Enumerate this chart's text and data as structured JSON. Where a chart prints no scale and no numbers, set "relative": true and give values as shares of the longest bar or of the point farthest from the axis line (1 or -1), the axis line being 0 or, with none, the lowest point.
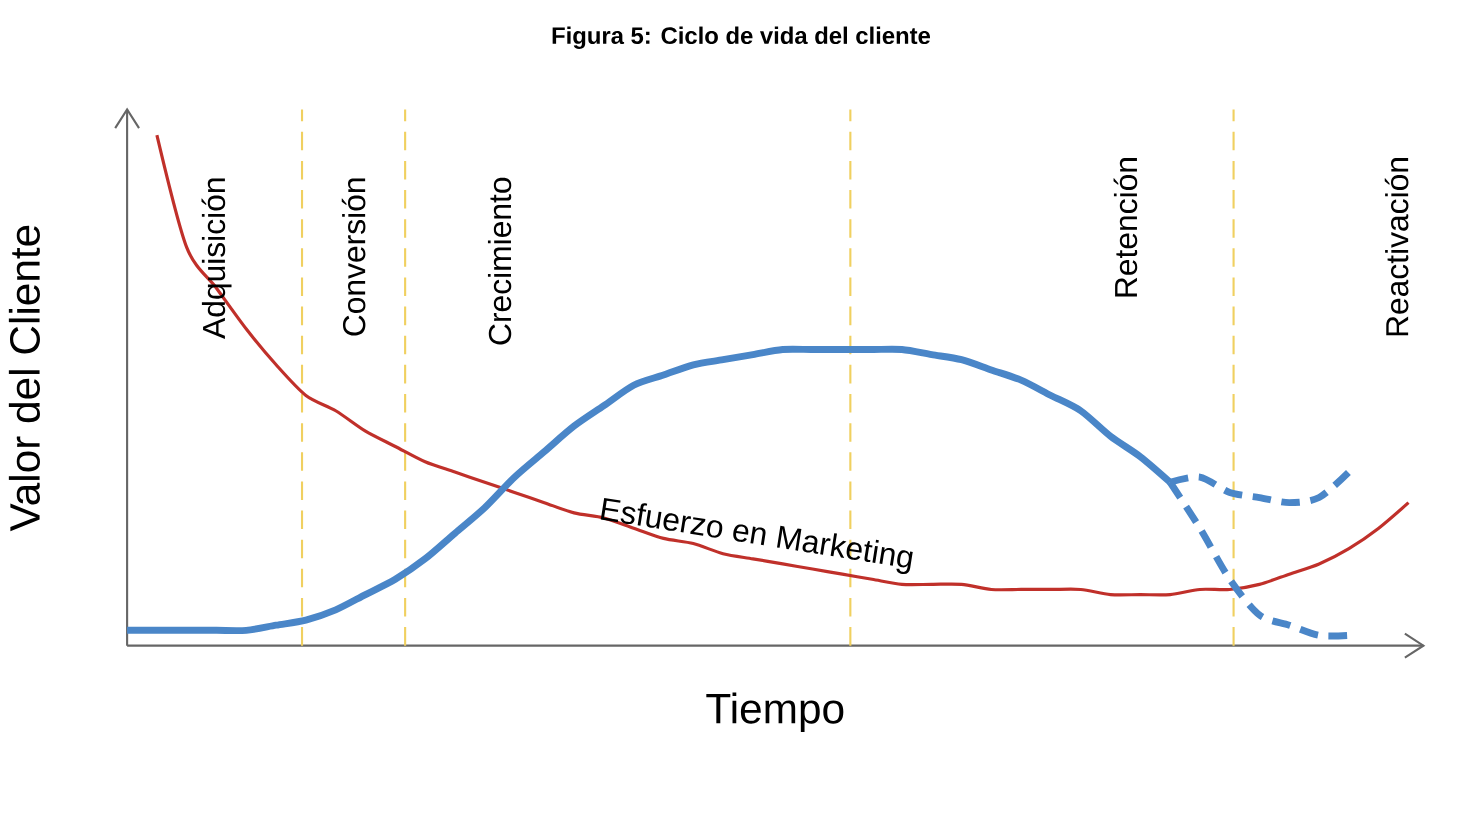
{
  "chart_data": {
    "type": "line",
    "title": "Figura 5: Ciclo de vida del cliente",
    "xlabel": "Tiempo",
    "ylabel": "Valor del Cliente",
    "relative": true,
    "categories": [
      null,
      null,
      null,
      null,
      null,
      null,
      null,
      null,
      null,
      null,
      null,
      null,
      null,
      null,
      null,
      null,
      null,
      null,
      null,
      null,
      null,
      null,
      null,
      null,
      null,
      null,
      null,
      null,
      null,
      null,
      null,
      null,
      null,
      null,
      null,
      null,
      null,
      null,
      null,
      null,
      null,
      null,
      null,
      null
    ],
    "series": [
      {
        "name": "Esfuerzo en Marketing",
        "color": "#c0302a",
        "values": [
          null,
          1.0,
          0.78,
          0.7,
          0.62,
          0.55,
          0.49,
          0.46,
          0.42,
          0.39,
          0.36,
          0.34,
          0.32,
          0.3,
          0.28,
          0.26,
          0.25,
          0.23,
          0.21,
          0.2,
          0.18,
          0.17,
          0.16,
          0.15,
          0.14,
          0.13,
          0.12,
          0.12,
          0.12,
          0.11,
          0.11,
          0.11,
          0.11,
          0.1,
          0.1,
          0.1,
          0.11,
          0.11,
          0.12,
          0.14,
          0.16,
          0.19,
          0.23,
          0.28
        ]
      },
      {
        "color": "#4a86c8",
        "line_style": "solid",
        "values": [
          0.03,
          0.03,
          0.03,
          0.03,
          0.03,
          0.04,
          0.05,
          0.07,
          0.1,
          0.13,
          0.17,
          0.22,
          0.27,
          0.33,
          0.38,
          0.43,
          0.47,
          0.51,
          0.53,
          0.55,
          0.56,
          0.57,
          0.58,
          0.58,
          0.58,
          0.58,
          0.58,
          0.57,
          0.56,
          0.54,
          0.52,
          0.49,
          0.46,
          0.41,
          0.37,
          0.32,
          null,
          null,
          null,
          null,
          null,
          null,
          null,
          null
        ]
      },
      {
        "color": "#4a86c8",
        "line_style": "dashed",
        "values": [
          null,
          null,
          null,
          null,
          null,
          null,
          null,
          null,
          null,
          null,
          null,
          null,
          null,
          null,
          null,
          null,
          null,
          null,
          null,
          null,
          null,
          null,
          null,
          null,
          null,
          null,
          null,
          null,
          null,
          null,
          null,
          null,
          null,
          null,
          null,
          0.32,
          0.23,
          0.13,
          0.06,
          0.04,
          0.02,
          0.02,
          null,
          null
        ]
      },
      {
        "color": "#4a86c8",
        "line_style": "dashed",
        "values": [
          null,
          null,
          null,
          null,
          null,
          null,
          null,
          null,
          null,
          null,
          null,
          null,
          null,
          null,
          null,
          null,
          null,
          null,
          null,
          null,
          null,
          null,
          null,
          null,
          null,
          null,
          null,
          null,
          null,
          null,
          null,
          null,
          null,
          null,
          null,
          0.32,
          0.33,
          0.3,
          0.29,
          0.28,
          0.29,
          0.34,
          null,
          null
        ]
      }
    ],
    "annotations": [
      "Adquisición",
      "Conversión",
      "Crecimiento",
      "Retención",
      "Reactivación"
    ]
  }
}
